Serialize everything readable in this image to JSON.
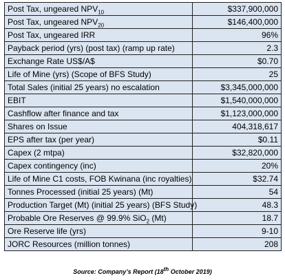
{
  "table": {
    "rows": [
      {
        "label": "Post Tax, ungeared NPV",
        "sub": "10",
        "value": "$337,900,000"
      },
      {
        "label": "Post Tax, ungeared NPV",
        "sub": "20",
        "value": "$146,400,000"
      },
      {
        "label": "Post Tax, ungeared IRR",
        "value": "96%"
      },
      {
        "label": "Payback period (yrs) (post tax) (ramp up rate)",
        "value": "2.3"
      },
      {
        "label": "Exchange Rate US$/A$",
        "value": "$0.70"
      },
      {
        "label": "Life of Mine (yrs) (Scope of BFS Study)",
        "value": "25"
      },
      {
        "label": "Total Sales (initial 25 years) no escalation",
        "value": "$3,345,000,000"
      },
      {
        "label": "EBIT",
        "value": "$1,540,000,000"
      },
      {
        "label": "Cashflow after finance and tax",
        "value": "$1,123,000,000"
      },
      {
        "label": "Shares on Issue",
        "value": "404,318,617"
      },
      {
        "label": "EPS after tax (per year)",
        "value": "$0.11"
      },
      {
        "label": "Capex (2 mtpa)",
        "value": "$32,820,000"
      },
      {
        "label": "Capex contingency (inc)",
        "value": "20%"
      },
      {
        "label": "Life of Mine C1 costs, FOB Kwinana (inc royalties)",
        "value": "$32.74"
      },
      {
        "label": "Tonnes Processed (initial 25 years) (Mt)",
        "value": "54"
      },
      {
        "label": "Production Target (Mt) (initial 25 years) (BFS Study)",
        "value": "48.3"
      },
      {
        "label": "Probable Ore Reserves @ 99.9% SiO",
        "sub": "2",
        "label_end": " (Mt)",
        "value": "18.7"
      },
      {
        "label": "Ore Reserve life (yrs)",
        "value": "9-10"
      },
      {
        "label": "JORC Resources (million tonnes)",
        "value": "208"
      }
    ]
  },
  "source": {
    "text": "Source: Company’s Report (18",
    "sup": "th",
    "text_end": " October 2019)"
  }
}
